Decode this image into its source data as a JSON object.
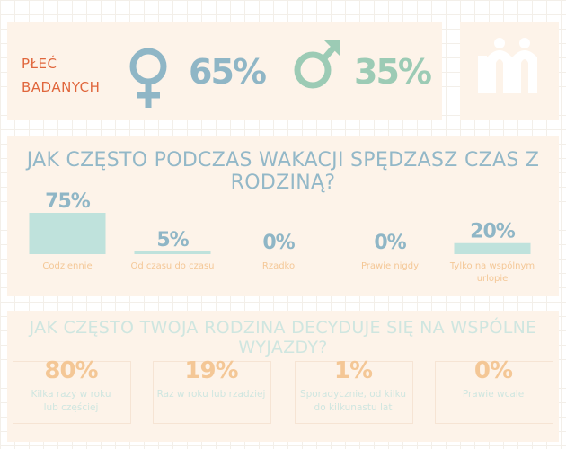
{
  "gender": {
    "label_line1": "PŁEĆ",
    "label_line2": "BADANYCH",
    "female_pct": "65%",
    "male_pct": "35%"
  },
  "colors": {
    "accent_orange": "#e0663c",
    "female_blue": "#8fb6c6",
    "male_green": "#9ccbb5",
    "bar_mint": "#bfe2dc",
    "tile_peach": "#f4c796",
    "panel_bg": "#fdf3e9"
  },
  "chart_data": [
    {
      "type": "bar",
      "title": "JAK CZĘSTO PODCZAS WAKACJI SPĘDZASZ CZAS Z RODZINĄ?",
      "categories": [
        "Codziennie",
        "Od czasu do czasu",
        "Rzadko",
        "Prawie nigdy",
        "Tylko na wspólnym urlopie"
      ],
      "values": [
        75,
        5,
        0,
        0,
        20
      ],
      "value_labels": [
        "75%",
        "5%",
        "0%",
        "0%",
        "20%"
      ],
      "ylim": [
        0,
        75
      ]
    },
    {
      "type": "table",
      "title": "JAK CZĘSTO TWOJA RODZINA DECYDUJE SIĘ NA WSPÓLNE WYJAZDY?",
      "items": [
        {
          "value": "80%",
          "label_line1": "Kilka razy w roku",
          "label_line2": "lub częściej"
        },
        {
          "value": "19%",
          "label_line1": "Raz w roku lub rzadziej",
          "label_line2": ""
        },
        {
          "value": "1%",
          "label_line1": "Sporadycznie, od kilku",
          "label_line2": "do kilkunastu lat"
        },
        {
          "value": "0%",
          "label_line1": "Prawie wcale",
          "label_line2": ""
        }
      ]
    }
  ]
}
